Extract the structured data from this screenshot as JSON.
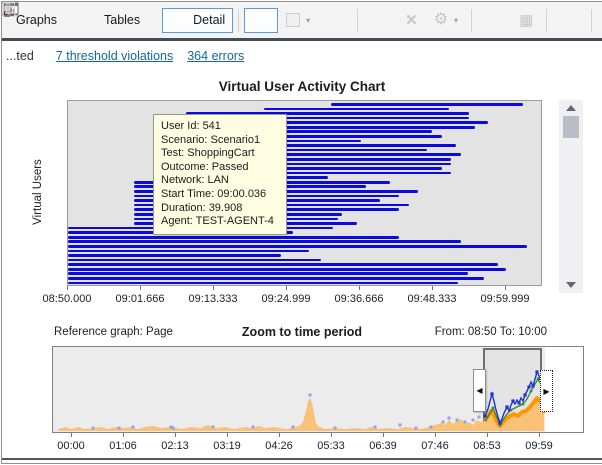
{
  "toolbar": {
    "graphs_label": "Graphs",
    "tables_label": "Tables",
    "detail_label": "Detail"
  },
  "icons": {
    "dropdown_arrow": "▾",
    "gear": "⚙",
    "delete": "✕",
    "grid": "▦",
    "excel": "X",
    "left_scroll_arrow": "◀",
    "right_scroll_arrow": "▶"
  },
  "status": {
    "truncated_text": "...ted",
    "violations_link": "7 threshold violations",
    "errors_link": "364 errors"
  },
  "main_chart": {
    "title": "Virtual User Activity Chart",
    "y_axis_label": "Virtual Users",
    "x_tick_labels": [
      "08:50.000",
      "09:01.666",
      "09:13.333",
      "09:24.999",
      "09:36.666",
      "09:48.333",
      "09:59.999"
    ],
    "tooltip_lines": [
      "User Id: 541",
      "Scenario: Scenario1",
      "Test: ShoppingCart",
      "Outcome: Passed",
      "Network: LAN",
      "Start Time: 09:00.036",
      "Duration: 39.908",
      "Agent: TEST-AGENT-4"
    ]
  },
  "ref_chart": {
    "left_label": "Reference graph: Page",
    "title": "Zoom to time period",
    "range_label": "From: 08:50  To: 10:00",
    "x_tick_labels": [
      "00:00",
      "01:06",
      "02:13",
      "03:19",
      "04:26",
      "05:33",
      "06:39",
      "07:46",
      "08:53",
      "09:59"
    ]
  },
  "colors": {
    "bar_blue": "#0a0ade",
    "tooltip_bg": "#fffde1",
    "orange_area": "#f9c277",
    "orange_bold": "#ff9800",
    "line_blue": "#2033d6",
    "line_green": "#2e8b2e",
    "marker_purple": "#9aa0e8",
    "link_blue": "#12679f",
    "selected_button_border": "#5b9bd5"
  },
  "chart_data": [
    {
      "type": "bar",
      "title": "Virtual User Activity Chart",
      "ylabel": "Virtual Users",
      "x_range": [
        "08:50.000",
        "09:59.999"
      ],
      "note": "Gantt-style horizontal bars, one per virtual user; values are [start%, end%] of the visible time axis 08:50.000-09:59.999",
      "bars": [
        [
          55.5,
          96.2
        ],
        [
          41.5,
          80.5
        ],
        [
          25,
          84.8
        ],
        [
          25,
          84.8
        ],
        [
          25,
          88.8
        ],
        [
          25,
          86
        ],
        [
          25,
          77
        ],
        [
          25,
          79
        ],
        [
          25,
          62
        ],
        [
          25,
          82
        ],
        [
          25,
          76
        ],
        [
          25,
          83
        ],
        [
          25,
          81
        ],
        [
          25,
          81
        ],
        [
          25,
          79
        ],
        [
          25,
          81
        ],
        [
          25,
          55
        ],
        [
          14,
          68
        ],
        [
          14,
          63
        ],
        [
          14,
          74
        ],
        [
          14,
          70
        ],
        [
          14,
          66
        ],
        [
          14,
          72
        ],
        [
          14,
          70
        ],
        [
          14,
          58
        ],
        [
          14,
          57
        ],
        [
          14,
          61
        ],
        [
          0,
          56
        ],
        [
          0,
          47.5
        ],
        [
          0,
          70
        ],
        [
          0,
          83
        ],
        [
          0,
          97
        ],
        [
          0,
          51
        ],
        [
          0,
          45
        ],
        [
          0,
          53.5
        ],
        [
          0,
          91
        ],
        [
          0,
          92.5
        ],
        [
          0,
          84.5
        ],
        [
          0,
          88
        ],
        [
          0,
          82.5
        ]
      ]
    },
    {
      "type": "area",
      "title": "Zoom to time period",
      "x_range": [
        "00:00",
        "09:59"
      ],
      "selection_range": [
        "08:50",
        "10:00"
      ],
      "note": "Overview graph; points are [x_px, height_px] relative to a 530x85 frame, baseline at bottom",
      "orange_area": [
        [
          5,
          2
        ],
        [
          12,
          4
        ],
        [
          18,
          2
        ],
        [
          25,
          4
        ],
        [
          32,
          2
        ],
        [
          40,
          3
        ],
        [
          48,
          4
        ],
        [
          55,
          2
        ],
        [
          62,
          4
        ],
        [
          70,
          3
        ],
        [
          78,
          4
        ],
        [
          85,
          2
        ],
        [
          92,
          4
        ],
        [
          100,
          5
        ],
        [
          108,
          3
        ],
        [
          118,
          4
        ],
        [
          128,
          2
        ],
        [
          138,
          4
        ],
        [
          148,
          3
        ],
        [
          155,
          6
        ],
        [
          163,
          3
        ],
        [
          172,
          4
        ],
        [
          182,
          2
        ],
        [
          192,
          4
        ],
        [
          200,
          3
        ],
        [
          206,
          5
        ],
        [
          212,
          3
        ],
        [
          222,
          4
        ],
        [
          232,
          2
        ],
        [
          240,
          3
        ],
        [
          246,
          5
        ],
        [
          250,
          9
        ],
        [
          253,
          20
        ],
        [
          255,
          30
        ],
        [
          257,
          33
        ],
        [
          259,
          28
        ],
        [
          261,
          18
        ],
        [
          263,
          8
        ],
        [
          266,
          4
        ],
        [
          272,
          2
        ],
        [
          282,
          3
        ],
        [
          292,
          2
        ],
        [
          302,
          3
        ],
        [
          312,
          2
        ],
        [
          318,
          4
        ],
        [
          325,
          2
        ],
        [
          335,
          3
        ],
        [
          345,
          2
        ],
        [
          352,
          4
        ],
        [
          360,
          3
        ],
        [
          368,
          2
        ],
        [
          376,
          4
        ],
        [
          382,
          6
        ],
        [
          388,
          8
        ],
        [
          392,
          6
        ],
        [
          396,
          11
        ],
        [
          400,
          7
        ],
        [
          404,
          10
        ],
        [
          408,
          12
        ],
        [
          412,
          7
        ],
        [
          416,
          9
        ],
        [
          420,
          6
        ],
        [
          424,
          11
        ],
        [
          428,
          9
        ],
        [
          432,
          10
        ],
        [
          435,
          15
        ],
        [
          438,
          20
        ],
        [
          441,
          16
        ],
        [
          444,
          9
        ],
        [
          447,
          5
        ],
        [
          450,
          9
        ],
        [
          453,
          12
        ],
        [
          457,
          15
        ],
        [
          461,
          17
        ],
        [
          465,
          15
        ],
        [
          469,
          19
        ],
        [
          473,
          20
        ],
        [
          477,
          24
        ],
        [
          481,
          29
        ],
        [
          484,
          33
        ],
        [
          487,
          30
        ],
        [
          490,
          28
        ],
        [
          491,
          18
        ]
      ],
      "blue_line": [
        [
          432,
          15
        ],
        [
          435,
          22
        ],
        [
          437,
          30
        ],
        [
          439,
          37
        ],
        [
          441,
          30
        ],
        [
          443,
          21
        ],
        [
          445,
          14
        ],
        [
          447,
          8
        ],
        [
          449,
          12
        ],
        [
          451,
          18
        ],
        [
          454,
          24
        ],
        [
          456,
          20
        ],
        [
          458,
          26
        ],
        [
          460,
          30
        ],
        [
          462,
          27
        ],
        [
          464,
          31
        ],
        [
          466,
          28
        ],
        [
          468,
          33
        ],
        [
          470,
          30
        ],
        [
          472,
          36
        ],
        [
          474,
          40
        ],
        [
          476,
          44
        ],
        [
          478,
          49
        ],
        [
          480,
          45
        ],
        [
          482,
          52
        ],
        [
          484,
          59
        ],
        [
          486,
          55
        ],
        [
          487,
          51
        ]
      ],
      "green_line": [
        [
          432,
          10
        ],
        [
          436,
          16
        ],
        [
          440,
          23
        ],
        [
          444,
          13
        ],
        [
          447,
          5
        ],
        [
          450,
          11
        ],
        [
          454,
          17
        ],
        [
          458,
          21
        ],
        [
          462,
          23
        ],
        [
          466,
          25
        ],
        [
          470,
          27
        ],
        [
          474,
          32
        ],
        [
          478,
          40
        ],
        [
          482,
          47
        ],
        [
          485,
          52
        ],
        [
          487,
          48
        ]
      ],
      "purple_markers": [
        [
          40,
          3
        ],
        [
          66,
          3
        ],
        [
          80,
          4
        ],
        [
          118,
          4
        ],
        [
          120,
          3
        ],
        [
          160,
          4
        ],
        [
          200,
          4
        ],
        [
          240,
          4
        ],
        [
          257,
          36
        ],
        [
          282,
          3
        ],
        [
          322,
          4
        ],
        [
          347,
          6
        ],
        [
          363,
          3
        ],
        [
          378,
          4
        ],
        [
          390,
          9
        ],
        [
          396,
          13
        ],
        [
          404,
          11
        ],
        [
          412,
          9
        ],
        [
          420,
          11
        ],
        [
          426,
          14
        ]
      ],
      "blue_markers": [
        [
          432,
          15
        ],
        [
          439,
          37
        ],
        [
          447,
          8
        ],
        [
          454,
          24
        ],
        [
          460,
          30
        ],
        [
          466,
          28
        ],
        [
          472,
          36
        ],
        [
          476,
          44
        ],
        [
          480,
          45
        ],
        [
          484,
          59
        ]
      ],
      "green_markers": [
        [
          440,
          23
        ],
        [
          458,
          21
        ],
        [
          470,
          27
        ],
        [
          478,
          40
        ],
        [
          485,
          52
        ]
      ]
    }
  ]
}
